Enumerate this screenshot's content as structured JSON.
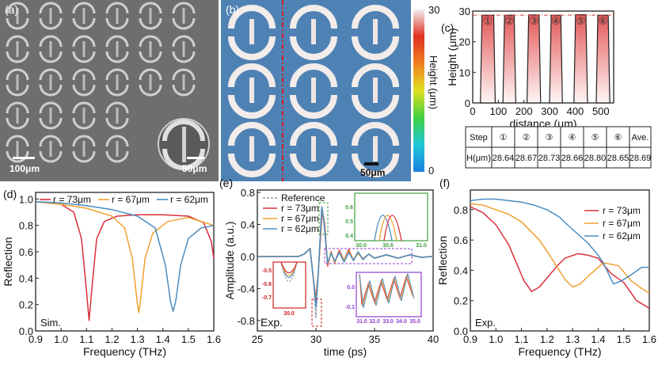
{
  "panels": {
    "a": "(a)",
    "b": "(b)",
    "c": "(c)",
    "d": "(d)",
    "e": "(e)",
    "f": "(f)"
  },
  "panel_a": {
    "scale1": "100μm",
    "scale2": "50μm"
  },
  "panel_b": {
    "scale": "50μm",
    "colorbar_max": "30",
    "colorbar_min": "0",
    "colorbar_label": "Height (μm)"
  },
  "table": {
    "header": [
      "Step",
      "①",
      "②",
      "③",
      "④",
      "⑤",
      "⑥",
      "Ave."
    ],
    "row": [
      "H(μm)",
      "28.64",
      "28.67",
      "28.73",
      "28.66",
      "28.80",
      "28.65",
      "28.69"
    ]
  },
  "colors": {
    "r73": "#d9303a",
    "r67": "#f0a030",
    "r62": "#4a8cc0",
    "ref": "#8a9aa8"
  },
  "chart_data": [
    {
      "id": "c",
      "type": "line",
      "xlabel": "distance (μm)",
      "ylabel": "Height (μm)",
      "xlim": [
        0,
        550
      ],
      "ylim": [
        0,
        30
      ],
      "xticks": [
        "0",
        "100",
        "200",
        "300",
        "400",
        "500"
      ],
      "yticks": [
        "0",
        "10",
        "20",
        "30"
      ],
      "step_labels": [
        "①",
        "②",
        "③",
        "④",
        "⑤",
        "⑥"
      ],
      "average_line": 28.69,
      "steps": [
        [
          30,
          88
        ],
        [
          118,
          168
        ],
        [
          212,
          265
        ],
        [
          300,
          350
        ],
        [
          395,
          448
        ],
        [
          482,
          535
        ]
      ],
      "heights": [
        28.64,
        28.67,
        28.73,
        28.66,
        28.8,
        28.65
      ]
    },
    {
      "id": "d",
      "type": "line",
      "xlabel": "Frequency (THz)",
      "ylabel": "Reflection",
      "xlim": [
        0.9,
        1.6
      ],
      "ylim": [
        0,
        1.05
      ],
      "xticks": [
        "0.9",
        "1.0",
        "1.1",
        "1.2",
        "1.3",
        "1.4",
        "1.5",
        "1.6"
      ],
      "yticks": [
        "0.0",
        "0.2",
        "0.4",
        "0.6",
        "0.8",
        "1.0"
      ],
      "note": "Sim.",
      "series": [
        {
          "name": "r = 73μm",
          "color": "r73",
          "x": [
            0.9,
            1.0,
            1.05,
            1.08,
            1.1,
            1.11,
            1.12,
            1.14,
            1.17,
            1.22,
            1.3,
            1.4,
            1.5,
            1.56,
            1.59,
            1.6
          ],
          "y": [
            0.98,
            0.96,
            0.9,
            0.7,
            0.3,
            0.08,
            0.3,
            0.7,
            0.83,
            0.87,
            0.88,
            0.88,
            0.87,
            0.82,
            0.68,
            0.55
          ]
        },
        {
          "name": "r = 67μm",
          "color": "r67",
          "x": [
            0.9,
            1.0,
            1.1,
            1.2,
            1.25,
            1.28,
            1.3,
            1.305,
            1.31,
            1.33,
            1.36,
            1.42,
            1.5,
            1.6
          ],
          "y": [
            0.98,
            0.96,
            0.93,
            0.87,
            0.78,
            0.55,
            0.2,
            0.14,
            0.2,
            0.55,
            0.74,
            0.83,
            0.86,
            0.8
          ]
        },
        {
          "name": "r = 62μm",
          "color": "r62",
          "x": [
            0.9,
            1.0,
            1.1,
            1.2,
            1.3,
            1.37,
            1.41,
            1.43,
            1.44,
            1.45,
            1.47,
            1.5,
            1.55,
            1.6
          ],
          "y": [
            0.98,
            0.97,
            0.95,
            0.92,
            0.87,
            0.78,
            0.5,
            0.22,
            0.15,
            0.22,
            0.5,
            0.7,
            0.78,
            0.8
          ]
        }
      ]
    },
    {
      "id": "e",
      "type": "line",
      "xlabel": "time (ps)",
      "ylabel": "Amplitude (a.u.)",
      "xlim": [
        25,
        40
      ],
      "ylim": [
        -0.93,
        0.83
      ],
      "xticks": [
        "25",
        "30",
        "35",
        "40"
      ],
      "yticks": [
        "-0.8",
        "-0.4",
        "0.0",
        "0.4",
        "0.8"
      ],
      "note": "Exp.",
      "inset_ticks": {
        "green": [
          "30.0",
          "30.6",
          "31.0",
          "0.4",
          "0.5",
          "0.6"
        ],
        "red": [
          "-0.5",
          "-0.6",
          "-0.7",
          "30.0"
        ],
        "purple": [
          "0.0",
          "-0.1",
          "31.0",
          "32.0",
          "33.0",
          "34.0",
          "35.0"
        ]
      },
      "series": [
        {
          "name": "Reference",
          "color": "ref",
          "dashed": true,
          "x": [
            25,
            28.5,
            29,
            29.5,
            29.8,
            30,
            30.2,
            30.5,
            30.7,
            31,
            31.3,
            31.6,
            32,
            32.4,
            32.8,
            33.2,
            33.6,
            34,
            34.5,
            35,
            36,
            37,
            38,
            39,
            40
          ],
          "y": [
            0,
            0,
            0.03,
            0.1,
            -0.3,
            -0.76,
            -0.2,
            0.63,
            0.4,
            -0.1,
            0.05,
            -0.06,
            0.07,
            -0.06,
            0.06,
            -0.04,
            0.04,
            -0.03,
            0.03,
            -0.02,
            0.02,
            -0.02,
            0.02,
            -0.01,
            0
          ]
        },
        {
          "name": "r = 73μm",
          "color": "r73",
          "x": [
            25,
            28.5,
            29,
            29.5,
            29.8,
            30,
            30.2,
            30.55,
            30.75,
            31,
            31.3,
            31.6,
            32,
            32.4,
            32.8,
            33.2,
            33.6,
            34,
            34.5,
            35,
            36,
            37,
            38,
            39,
            40
          ],
          "y": [
            0,
            0,
            0.03,
            0.1,
            -0.3,
            -0.52,
            -0.2,
            0.58,
            0.4,
            -0.12,
            0.06,
            -0.08,
            0.08,
            -0.05,
            0.09,
            -0.05,
            0.05,
            -0.03,
            0.03,
            -0.02,
            0.02,
            -0.02,
            0.02,
            -0.01,
            0
          ]
        },
        {
          "name": "r = 67μm",
          "color": "r67",
          "x": [
            25,
            28.5,
            29,
            29.5,
            29.8,
            30,
            30.2,
            30.53,
            30.72,
            31,
            31.3,
            31.6,
            32,
            32.4,
            32.8,
            33.2,
            33.6,
            34,
            34.5,
            35,
            36,
            37,
            38,
            39,
            40
          ],
          "y": [
            0,
            0,
            0.03,
            0.1,
            -0.3,
            -0.58,
            -0.2,
            0.6,
            0.4,
            -0.1,
            0.05,
            -0.07,
            0.06,
            -0.05,
            0.07,
            -0.04,
            0.04,
            -0.03,
            0.03,
            -0.02,
            0.02,
            -0.02,
            0.02,
            -0.01,
            0
          ]
        },
        {
          "name": "r = 62μm",
          "color": "r62",
          "x": [
            25,
            28.5,
            29,
            29.5,
            29.8,
            30,
            30.2,
            30.5,
            30.7,
            31,
            31.3,
            31.6,
            32,
            32.4,
            32.8,
            33.2,
            33.6,
            34,
            34.5,
            35,
            36,
            37,
            38,
            39,
            40
          ],
          "y": [
            0,
            0,
            0.03,
            0.1,
            -0.3,
            -0.63,
            -0.2,
            0.62,
            0.4,
            -0.08,
            0.04,
            -0.06,
            0.05,
            -0.07,
            0.05,
            -0.05,
            0.06,
            -0.04,
            0.03,
            -0.02,
            0.02,
            -0.02,
            0.02,
            -0.01,
            0
          ]
        }
      ]
    },
    {
      "id": "f",
      "type": "line",
      "xlabel": "Frequency (THz)",
      "ylabel": "Reflection",
      "xlim": [
        0.9,
        1.6
      ],
      "ylim": [
        0,
        0.93
      ],
      "xticks": [
        "0.9",
        "1.0",
        "1.1",
        "1.2",
        "1.3",
        "1.4",
        "1.5",
        "1.6"
      ],
      "yticks": [
        "0.0",
        "0.2",
        "0.4",
        "0.6",
        "0.8"
      ],
      "note": "Exp.",
      "series": [
        {
          "name": "r = 73μm",
          "color": "r73",
          "x": [
            0.9,
            0.95,
            1.0,
            1.05,
            1.08,
            1.11,
            1.14,
            1.17,
            1.2,
            1.24,
            1.27,
            1.32,
            1.36,
            1.4,
            1.45,
            1.5,
            1.55,
            1.6
          ],
          "y": [
            0.82,
            0.78,
            0.7,
            0.57,
            0.45,
            0.33,
            0.26,
            0.29,
            0.35,
            0.43,
            0.48,
            0.51,
            0.5,
            0.48,
            0.38,
            0.32,
            0.2,
            0.15
          ]
        },
        {
          "name": "r = 67μm",
          "color": "r67",
          "x": [
            0.9,
            0.95,
            1.0,
            1.05,
            1.1,
            1.17,
            1.21,
            1.24,
            1.27,
            1.3,
            1.33,
            1.36,
            1.42,
            1.48,
            1.53,
            1.57,
            1.6
          ],
          "y": [
            0.84,
            0.83,
            0.8,
            0.77,
            0.72,
            0.6,
            0.5,
            0.42,
            0.34,
            0.29,
            0.31,
            0.36,
            0.45,
            0.43,
            0.33,
            0.28,
            0.25
          ]
        },
        {
          "name": "r = 62μm",
          "color": "r62",
          "x": [
            0.9,
            0.95,
            1.0,
            1.05,
            1.1,
            1.15,
            1.2,
            1.25,
            1.28,
            1.32,
            1.36,
            1.4,
            1.42,
            1.44,
            1.46,
            1.49,
            1.52,
            1.57,
            1.6
          ],
          "y": [
            0.86,
            0.87,
            0.87,
            0.86,
            0.85,
            0.83,
            0.8,
            0.75,
            0.7,
            0.64,
            0.58,
            0.5,
            0.45,
            0.38,
            0.31,
            0.33,
            0.36,
            0.42,
            0.42
          ]
        }
      ]
    }
  ]
}
